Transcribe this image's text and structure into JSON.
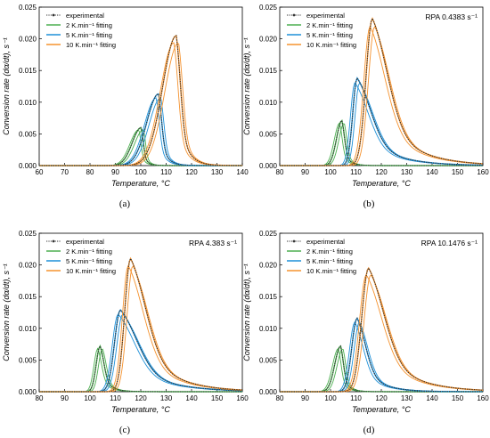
{
  "chart_data": [
    {
      "panel": "a",
      "caption": "(a)",
      "type": "line",
      "annotation": "",
      "xlabel": "Temperature, °C",
      "ylabel": "Conversion rate (dα/dt), s⁻¹",
      "xlim": [
        60,
        140
      ],
      "ylim": [
        0,
        0.025
      ],
      "xticks": [
        "60",
        "70",
        "80",
        "90",
        "100",
        "110",
        "120",
        "130",
        "140"
      ],
      "yticks": [
        "0.000",
        "0.005",
        "0.010",
        "0.015",
        "0.020",
        "0.025"
      ],
      "legend": [
        "experimental",
        "2 K.min⁻¹ fitting",
        "5 K.min⁻¹ fitting",
        "10 K.min⁻¹ fitting"
      ],
      "legend_position": "top-left",
      "colors": {
        "experimental": "#333333",
        "2": "#4caf50",
        "5": "#1e90d8",
        "10": "#f5922e"
      },
      "series": [
        {
          "name": "2 K.min⁻¹ fitting",
          "heating_rate": 2,
          "peak_x": 100.2,
          "peak_y": 0.006,
          "onset_x": 91,
          "end_x": 106
        },
        {
          "name": "5 K.min⁻¹ fitting",
          "heating_rate": 5,
          "peak_x": 107,
          "peak_y": 0.0113,
          "onset_x": 95,
          "end_x": 116
        },
        {
          "name": "10 K.min⁻¹ fitting",
          "heating_rate": 10,
          "peak_x": 114,
          "peak_y": 0.0205,
          "onset_x": 100,
          "end_x": 126
        }
      ]
    },
    {
      "panel": "b",
      "caption": "(b)",
      "type": "line",
      "annotation": "RPA 0.4383 s⁻¹",
      "xlabel": "Temperature, °C",
      "ylabel": "Conversion rate (dα/dt), s⁻¹",
      "xlim": [
        80,
        160
      ],
      "ylim": [
        0,
        0.025
      ],
      "xticks": [
        "80",
        "90",
        "100",
        "110",
        "120",
        "130",
        "140",
        "150",
        "160"
      ],
      "yticks": [
        "0.000",
        "0.005",
        "0.010",
        "0.015",
        "0.020",
        "0.025"
      ],
      "legend": [
        "experimental",
        "2 K.min⁻¹ fitting",
        "5 K.min⁻¹ fitting",
        "10 K.min⁻¹ fitting"
      ],
      "legend_position": "top-left",
      "colors": {
        "experimental": "#333333",
        "2": "#4caf50",
        "5": "#1e90d8",
        "10": "#f5922e"
      },
      "series": [
        {
          "name": "2 K.min⁻¹ fitting",
          "heating_rate": 2,
          "peak_x": 104.5,
          "peak_y": 0.0071,
          "onset_x": 99,
          "end_x": 112
        },
        {
          "name": "5 K.min⁻¹ fitting",
          "heating_rate": 5,
          "peak_x": 110.5,
          "peak_y": 0.0138,
          "onset_x": 106,
          "end_x": 150
        },
        {
          "name": "10 K.min⁻¹ fitting",
          "heating_rate": 10,
          "peak_x": 116.5,
          "peak_y": 0.0232,
          "onset_x": 110,
          "end_x": 160
        }
      ]
    },
    {
      "panel": "c",
      "caption": "(c)",
      "type": "line",
      "annotation": "RPA 4.383 s⁻¹",
      "xlabel": "Temperature, °C",
      "ylabel": "Conversion rate (dα/dt), s⁻¹",
      "xlim": [
        80,
        160
      ],
      "ylim": [
        0,
        0.025
      ],
      "xticks": [
        "80",
        "90",
        "100",
        "110",
        "120",
        "130",
        "140",
        "150",
        "160"
      ],
      "yticks": [
        "0.000",
        "0.005",
        "0.010",
        "0.015",
        "0.020",
        "0.025"
      ],
      "legend": [
        "experimental",
        "2 K.min⁻¹ fitting",
        "5 K.min⁻¹ fitting",
        "10 K.min⁻¹ fitting"
      ],
      "legend_position": "top-left",
      "colors": {
        "experimental": "#333333",
        "2": "#4caf50",
        "5": "#1e90d8",
        "10": "#f5922e"
      },
      "series": [
        {
          "name": "2 K.min⁻¹ fitting",
          "heating_rate": 2,
          "peak_x": 104,
          "peak_y": 0.0072,
          "onset_x": 100,
          "end_x": 115
        },
        {
          "name": "5 K.min⁻¹ fitting",
          "heating_rate": 5,
          "peak_x": 112,
          "peak_y": 0.0129,
          "onset_x": 106,
          "end_x": 160
        },
        {
          "name": "10 K.min⁻¹ fitting",
          "heating_rate": 10,
          "peak_x": 116,
          "peak_y": 0.021,
          "onset_x": 110,
          "end_x": 160
        }
      ]
    },
    {
      "panel": "d",
      "caption": "(d)",
      "type": "line",
      "annotation": "RPA 10.1476 s⁻¹",
      "xlabel": "Temperature, °C",
      "ylabel": "Conversion rate (dα/dt), s⁻¹",
      "xlim": [
        80,
        160
      ],
      "ylim": [
        0,
        0.025
      ],
      "xticks": [
        "80",
        "90",
        "100",
        "110",
        "120",
        "130",
        "140",
        "150",
        "160"
      ],
      "yticks": [
        "0.000",
        "0.005",
        "0.010",
        "0.015",
        "0.020",
        "0.025"
      ],
      "legend": [
        "experimental",
        "2 K.min⁻¹ fitting",
        "5 K.min⁻¹ fitting",
        "10 K.min⁻¹ fitting"
      ],
      "legend_position": "top-left",
      "colors": {
        "experimental": "#333333",
        "2": "#4caf50",
        "5": "#1e90d8",
        "10": "#f5922e"
      },
      "series": [
        {
          "name": "2 K.min⁻¹ fitting",
          "heating_rate": 2,
          "peak_x": 104,
          "peak_y": 0.0072,
          "onset_x": 98,
          "end_x": 112
        },
        {
          "name": "5 K.min⁻¹ fitting",
          "heating_rate": 5,
          "peak_x": 110.5,
          "peak_y": 0.0116,
          "onset_x": 105,
          "end_x": 135
        },
        {
          "name": "10 K.min⁻¹ fitting",
          "heating_rate": 10,
          "peak_x": 115,
          "peak_y": 0.0195,
          "onset_x": 108,
          "end_x": 160
        }
      ]
    }
  ]
}
